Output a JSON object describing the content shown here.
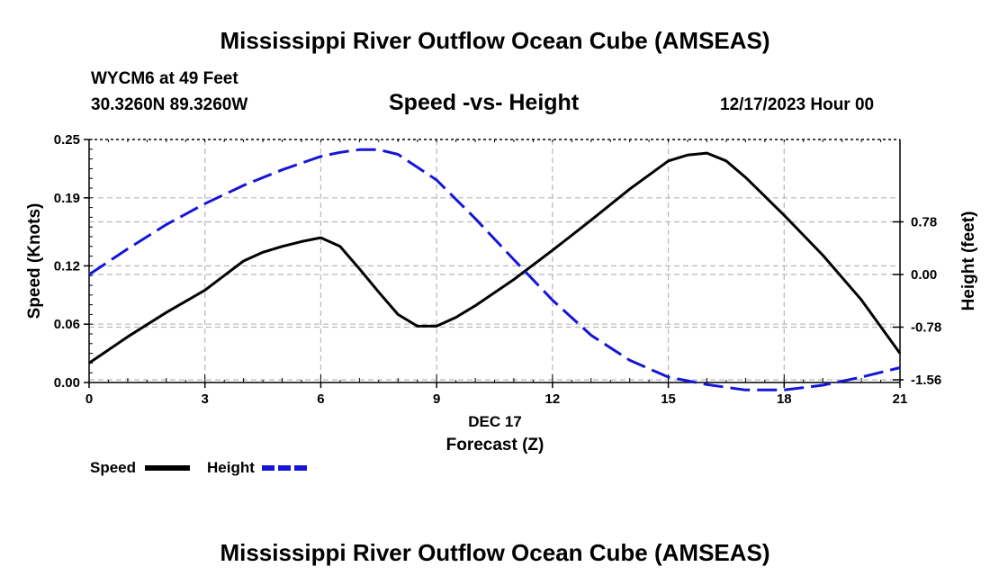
{
  "header": {
    "title": "Mississippi River Outflow Ocean Cube (AMSEAS)",
    "station": "WYCM6 at 49 Feet",
    "coords": "30.3260N  89.3260W",
    "subtitle": "Speed -vs- Height",
    "datetime": "12/17/2023 Hour 00"
  },
  "footer": {
    "title": "Mississippi River Outflow Ocean Cube (AMSEAS)"
  },
  "legend": {
    "speed_label": "Speed",
    "height_label": "Height"
  },
  "colors": {
    "speed": "#000000",
    "height": "#1515d8",
    "grid": "#b8b8b8"
  },
  "chart_data": {
    "type": "line",
    "title": "Speed -vs- Height",
    "xlabel": "Forecast (Z)",
    "xlabel_date": "DEC 17",
    "ylabel": "Speed (Knots)",
    "y2label": "Height (feet)",
    "xlim": [
      0,
      21
    ],
    "ylim": [
      0,
      0.25
    ],
    "y2lim": [
      -1.6,
      2.0
    ],
    "x_ticks": [
      0,
      3,
      6,
      9,
      12,
      15,
      18,
      21
    ],
    "x_tick_labels": [
      "0",
      "3",
      "6",
      "9",
      "12",
      "15",
      "18",
      "21"
    ],
    "y_ticks": [
      0.0,
      0.06,
      0.12,
      0.19,
      0.25
    ],
    "y_tick_labels": [
      "0.00",
      "0.06",
      "0.12",
      "0.19",
      "0.25"
    ],
    "y2_ticks": [
      0.78,
      0.0,
      -0.78,
      -1.56
    ],
    "y2_tick_labels": [
      "0.78",
      "0.00",
      "-0.78",
      "-1.56"
    ],
    "grid": true,
    "series": [
      {
        "name": "Speed",
        "axis": "left",
        "style": "solid",
        "x": [
          0,
          1,
          2,
          3,
          4,
          4.5,
          5,
          5.5,
          6,
          6.5,
          7,
          7.5,
          8,
          8.5,
          9,
          9.5,
          10,
          11,
          12,
          13,
          14,
          15,
          15.5,
          16,
          16.5,
          17,
          18,
          19,
          20,
          21
        ],
        "values": [
          0.02,
          0.047,
          0.072,
          0.095,
          0.125,
          0.134,
          0.14,
          0.145,
          0.149,
          0.14,
          0.117,
          0.093,
          0.07,
          0.058,
          0.058,
          0.067,
          0.079,
          0.106,
          0.136,
          0.167,
          0.199,
          0.228,
          0.234,
          0.236,
          0.228,
          0.211,
          0.172,
          0.131,
          0.085,
          0.03
        ]
      },
      {
        "name": "Height",
        "axis": "right",
        "style": "dashed",
        "x": [
          0,
          1,
          2,
          3,
          4,
          5,
          6,
          6.5,
          7,
          7.5,
          8,
          9,
          10,
          11,
          12,
          13,
          14,
          15,
          16,
          17,
          18,
          19,
          20,
          21
        ],
        "values": [
          0.0,
          0.38,
          0.74,
          1.05,
          1.32,
          1.55,
          1.75,
          1.81,
          1.85,
          1.85,
          1.78,
          1.4,
          0.83,
          0.22,
          -0.38,
          -0.9,
          -1.27,
          -1.52,
          -1.63,
          -1.71,
          -1.71,
          -1.64,
          -1.52,
          -1.38
        ]
      }
    ]
  }
}
